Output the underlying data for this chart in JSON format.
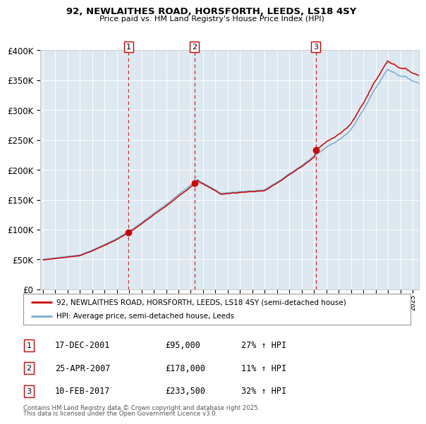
{
  "title": "92, NEWLAITHES ROAD, HORSFORTH, LEEDS, LS18 4SY",
  "subtitle": "Price paid vs. HM Land Registry's House Price Index (HPI)",
  "legend_line1": "92, NEWLAITHES ROAD, HORSFORTH, LEEDS, LS18 4SY (semi-detached house)",
  "legend_line2": "HPI: Average price, semi-detached house, Leeds",
  "transactions": [
    {
      "num": 1,
      "date": "17-DEC-2001",
      "price": 95000,
      "pct": "27%",
      "direction": "↑"
    },
    {
      "num": 2,
      "date": "25-APR-2007",
      "price": 178000,
      "pct": "11%",
      "direction": "↑"
    },
    {
      "num": 3,
      "date": "10-FEB-2017",
      "price": 233500,
      "pct": "32%",
      "direction": "↑"
    }
  ],
  "footnote1": "Contains HM Land Registry data © Crown copyright and database right 2025.",
  "footnote2": "This data is licensed under the Open Government Licence v3.0.",
  "red_color": "#cc0000",
  "blue_color": "#7aadcf",
  "bg_color": "#dde8f0",
  "ylim": [
    0,
    400000
  ],
  "yticks": [
    0,
    50000,
    100000,
    150000,
    200000,
    250000,
    300000,
    350000,
    400000
  ],
  "x_start_year": 1995,
  "x_end_year": 2025
}
